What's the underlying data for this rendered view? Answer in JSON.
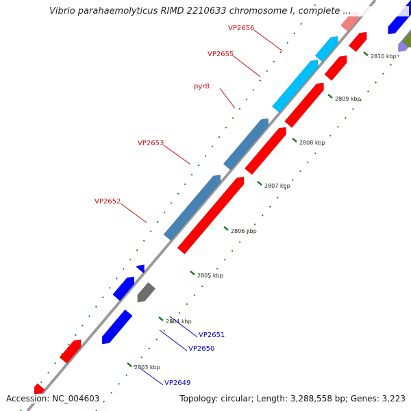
{
  "title": "Vibrio parahaemolyticus RIMD 2210633 chromosome I, complete ...",
  "accession": "Accession: NC_004603",
  "summary": "Topology: circular; Length: 3,288,558 bp; Genes: 3,223",
  "colors": {
    "backbone": "#9a9a9a",
    "tick": "#1f7a1f",
    "red_gene": "#ff0000",
    "red_label": "#d40000",
    "blue_gene": "#0000ff",
    "blue_label": "#0000cc",
    "cyan_gene": "#00bfff",
    "steel_gene": "#4682b4",
    "pink_gene": "#f08080",
    "lavender_gene": "#8a7fe0",
    "olive_gene": "#6b8e23",
    "gray_gene": "#6e6e6e"
  },
  "kbp_marks": [
    {
      "label": "2803 kbp"
    },
    {
      "label": "2804 kbp"
    },
    {
      "label": "2805 kbp"
    },
    {
      "label": "2806 kbp"
    },
    {
      "label": "2807 kbp"
    },
    {
      "label": "2808 kbp"
    },
    {
      "label": "2809 kbp"
    },
    {
      "label": "2810 kbp"
    }
  ],
  "gene_labels": [
    {
      "name": "VP2656",
      "strand": "plus"
    },
    {
      "name": "VP2655",
      "strand": "plus"
    },
    {
      "name": "pyrB",
      "strand": "plus"
    },
    {
      "name": "VP2653",
      "strand": "plus"
    },
    {
      "name": "VP2652",
      "strand": "plus"
    },
    {
      "name": "VP2651",
      "strand": "minus"
    },
    {
      "name": "VP2650",
      "strand": "minus"
    },
    {
      "name": "VP2649",
      "strand": "minus"
    }
  ]
}
